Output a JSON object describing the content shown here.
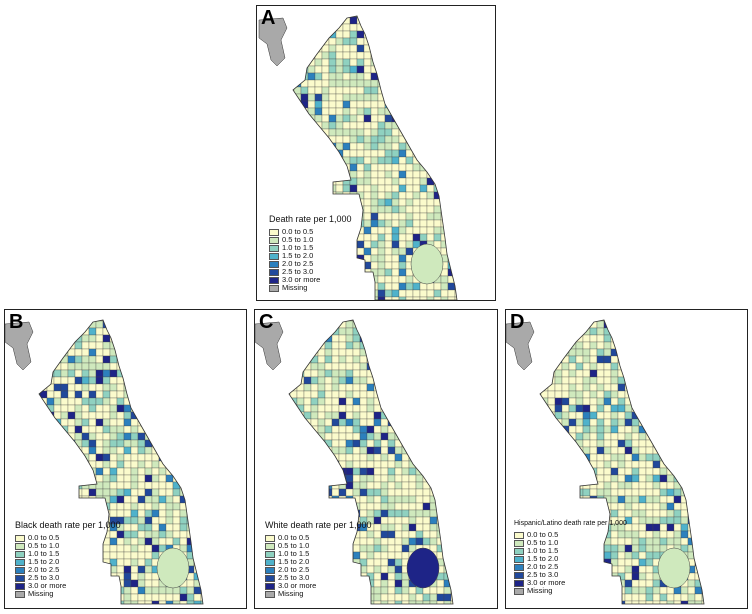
{
  "panels": [
    {
      "id": "a",
      "letter": "A",
      "legend_title": "Death rate per 1,000",
      "variant": 0
    },
    {
      "id": "b",
      "letter": "B",
      "legend_title": "Black death rate per 1,000",
      "variant": 1
    },
    {
      "id": "c",
      "letter": "C",
      "legend_title": "White death rate per 1,000",
      "variant": 2
    },
    {
      "id": "d",
      "letter": "D",
      "legend_title": "Hispanic/Latino death rate per 1,000",
      "variant": 3
    }
  ],
  "legend": [
    {
      "label": "0.0 to 0.5",
      "color": "#fbfbcc"
    },
    {
      "label": "0.5 to 1.0",
      "color": "#cfe9bd"
    },
    {
      "label": "1.0 to 1.5",
      "color": "#8fd1c0"
    },
    {
      "label": "1.5 to 2.0",
      "color": "#4fb2cb"
    },
    {
      "label": "2.0 to 2.5",
      "color": "#2c80bd"
    },
    {
      "label": "2.5 to 3.0",
      "color": "#21489b"
    },
    {
      "label": "3.0 or more",
      "color": "#1e2487"
    },
    {
      "label": "Missing",
      "color": "#a9a9a9"
    }
  ]
}
